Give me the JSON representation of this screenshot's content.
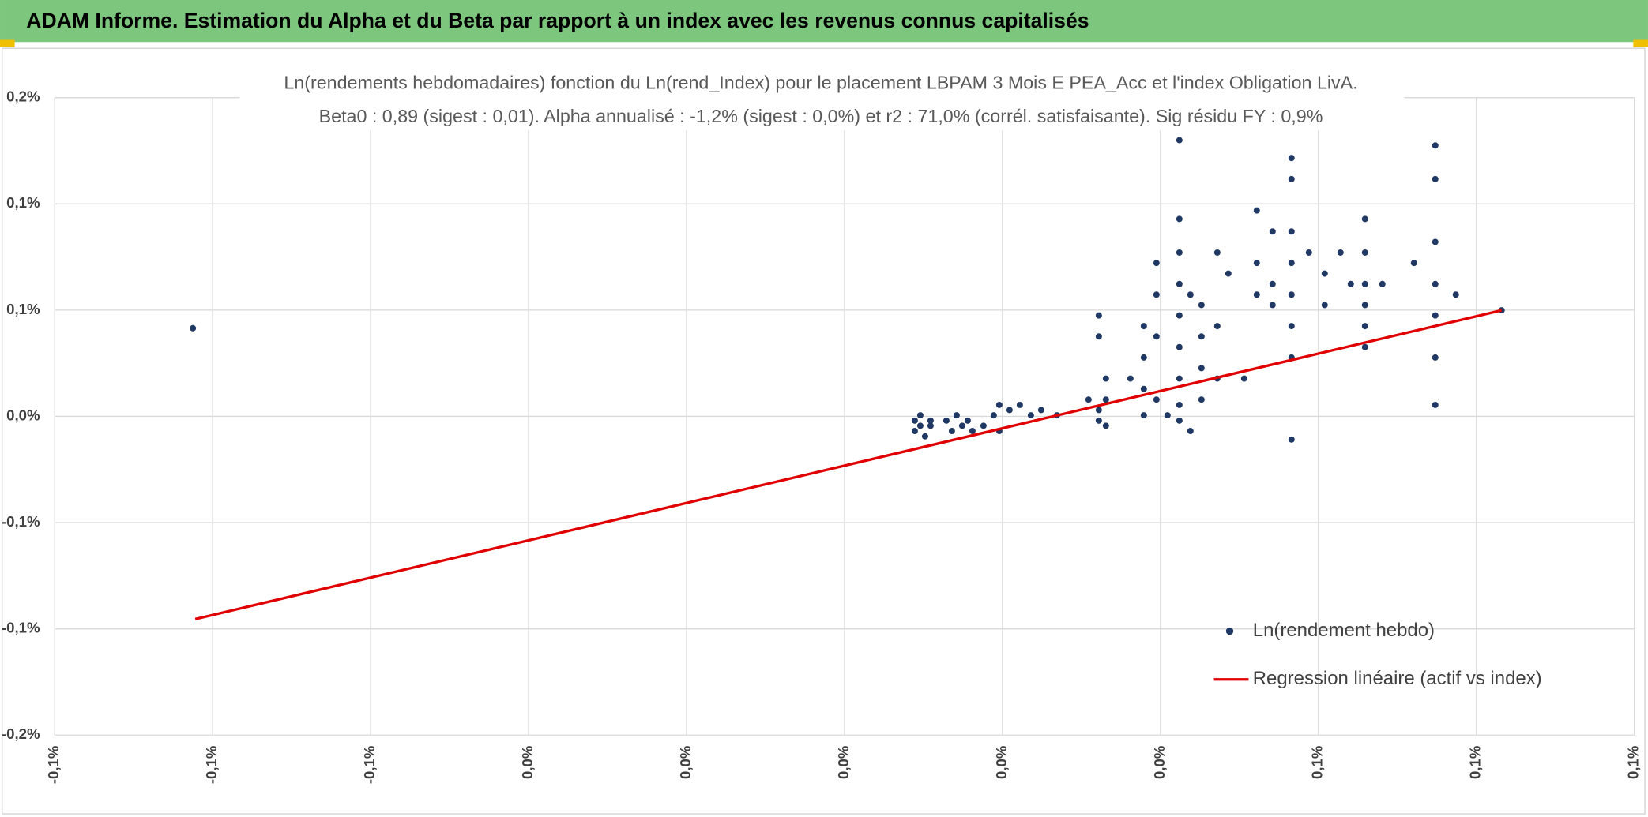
{
  "header": {
    "title": "ADAM Informe. Estimation du Alpha et du Beta par rapport à un index avec les revenus connus capitalisés"
  },
  "chart_data": {
    "type": "scatter",
    "title": "Ln(rendements hebdomadaires) fonction du Ln(rend_Index) pour le placement LBPAM 3 Mois E PEA_Acc et l'index Obligation LivA.",
    "subtitle": "Beta0 : 0,89 (sigest : 0,01). Alpha annualisé : -1,2% (sigest : 0,0%) et r2 : 71,0% (corrél. satisfaisante). Sig résidu FY : 0,9%",
    "xlim": [
      -0.1,
      0.1
    ],
    "xticks": [
      {
        "value": -0.1,
        "label": "-0,1%"
      },
      {
        "value": -0.08,
        "label": "-0,1%"
      },
      {
        "value": -0.06,
        "label": "-0,1%"
      },
      {
        "value": -0.04,
        "label": "0,0%"
      },
      {
        "value": -0.02,
        "label": "0,0%"
      },
      {
        "value": 0,
        "label": "0,0%"
      },
      {
        "value": 0.02,
        "label": "0,0%"
      },
      {
        "value": 0.04,
        "label": "0,0%"
      },
      {
        "value": 0.06,
        "label": "0,1%"
      },
      {
        "value": 0.08,
        "label": "0,1%"
      },
      {
        "value": 0.1,
        "label": "0,1%"
      }
    ],
    "ylim": [
      -0.15,
      0.15
    ],
    "yticks": [
      {
        "value": 0.15,
        "label": "0,2%"
      },
      {
        "value": 0.1,
        "label": "0,1%"
      },
      {
        "value": 0.05,
        "label": "0,1%"
      },
      {
        "value": 0,
        "label": "0,0%"
      },
      {
        "value": -0.05,
        "label": "-0,1%"
      },
      {
        "value": -0.1,
        "label": "-0,1%"
      },
      {
        "value": -0.15,
        "label": "-0,2%"
      }
    ],
    "grid": true,
    "legend": "bottom-right",
    "series": [
      {
        "name": "Ln(rendement hebdo)",
        "type": "scatter",
        "color": "#203864",
        "x": [
          -0.0825,
          0.0089,
          0.0089,
          0.0096,
          0.0096,
          0.0102,
          0.0109,
          0.0109,
          0.0129,
          0.0136,
          0.0142,
          0.0149,
          0.0156,
          0.0162,
          0.0176,
          0.0189,
          0.0196,
          0.0196,
          0.0209,
          0.0222,
          0.0236,
          0.0249,
          0.0269,
          0.0309,
          0.0322,
          0.0322,
          0.0322,
          0.0322,
          0.0331,
          0.0331,
          0.0331,
          0.0362,
          0.0379,
          0.0379,
          0.0379,
          0.0379,
          0.0395,
          0.0395,
          0.0395,
          0.0395,
          0.0409,
          0.0424,
          0.0424,
          0.0424,
          0.0424,
          0.0424,
          0.0424,
          0.0424,
          0.0424,
          0.0424,
          0.0438,
          0.0438,
          0.0452,
          0.0452,
          0.0452,
          0.0452,
          0.0472,
          0.0472,
          0.0472,
          0.0486,
          0.0506,
          0.0522,
          0.0522,
          0.0522,
          0.0542,
          0.0542,
          0.0542,
          0.0566,
          0.0566,
          0.0566,
          0.0566,
          0.0566,
          0.0566,
          0.0566,
          0.0566,
          0.0588,
          0.0608,
          0.0608,
          0.0628,
          0.0641,
          0.0659,
          0.0659,
          0.0659,
          0.0659,
          0.0659,
          0.0659,
          0.0681,
          0.0721,
          0.0748,
          0.0748,
          0.0748,
          0.0748,
          0.0748,
          0.0748,
          0.0748,
          0.0774,
          0.0832
        ],
        "y": [
          0.0415,
          -0.002,
          -0.0069,
          -0.0044,
          0.0005,
          -0.0094,
          -0.0044,
          -0.002,
          -0.002,
          -0.0069,
          0.0005,
          -0.0044,
          -0.002,
          -0.0069,
          -0.0044,
          0.0005,
          0.0054,
          -0.0069,
          0.003,
          0.0054,
          0.0005,
          0.003,
          0.0005,
          0.0079,
          0.0475,
          0.0376,
          0.003,
          -0.002,
          0.0178,
          0.0079,
          -0.0044,
          0.0178,
          0.0425,
          0.0277,
          0.0129,
          0.0005,
          0.0722,
          0.0573,
          0.0376,
          0.0079,
          0.0005,
          0.13,
          0.0929,
          0.0771,
          0.0623,
          0.0475,
          0.0326,
          0.0178,
          0.0054,
          -0.002,
          -0.0069,
          0.0573,
          0.0524,
          0.0376,
          0.0227,
          0.0079,
          0.0771,
          0.0425,
          0.0178,
          0.0672,
          0.0178,
          0.0969,
          0.0722,
          0.0573,
          0.087,
          0.0623,
          0.0524,
          0.1216,
          0.1117,
          0.087,
          0.0722,
          0.0573,
          0.0425,
          0.0277,
          -0.0109,
          0.0771,
          0.0672,
          0.0524,
          0.0771,
          0.0623,
          0.0929,
          0.0771,
          0.0623,
          0.0524,
          0.0425,
          0.0326,
          0.0623,
          0.0722,
          0.1275,
          0.1117,
          0.0821,
          0.0623,
          0.0475,
          0.0277,
          0.0054,
          0.0573,
          0.0499
        ]
      },
      {
        "name": "Regression linéaire (actif vs index)",
        "type": "line",
        "color": "#e00000",
        "x": [
          -0.0822,
          0.0832
        ],
        "y": [
          -0.0954,
          0.0499
        ]
      }
    ]
  }
}
